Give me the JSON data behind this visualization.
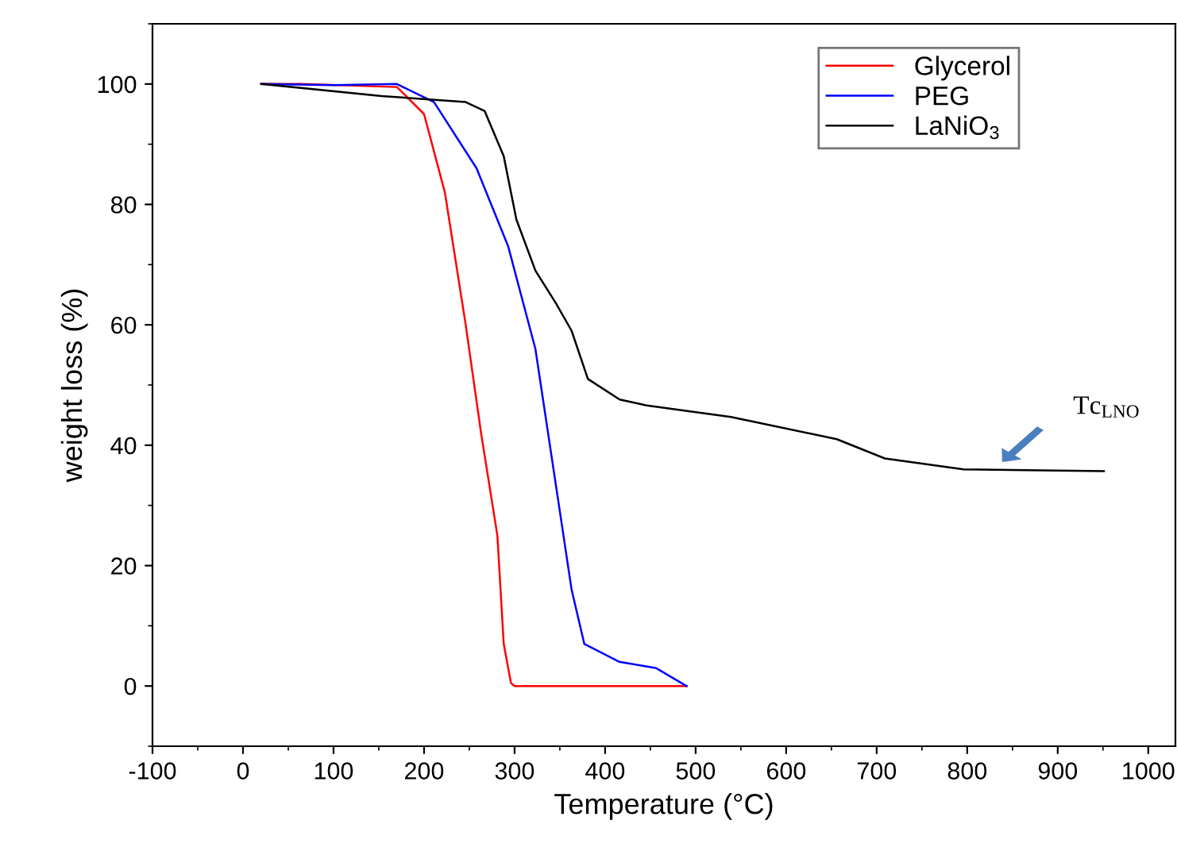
{
  "chart_data": {
    "type": "line",
    "xlabel": "Temperature (°C)",
    "ylabel": "weight loss (%)",
    "xlim": [
      -100,
      1030
    ],
    "ylim": [
      -10,
      110
    ],
    "xticks": [
      -100,
      0,
      100,
      200,
      300,
      400,
      500,
      600,
      700,
      800,
      900,
      1000
    ],
    "yticks": [
      0,
      20,
      40,
      60,
      80,
      100
    ],
    "grid": false,
    "legend": "top right",
    "line_style": "solid",
    "marker": "none",
    "series": [
      {
        "name": "Glycerol",
        "color": "#ff0000",
        "x": [
          20,
          65,
          170,
          200,
          223,
          246,
          263,
          281,
          288,
          296,
          300,
          490
        ],
        "values": [
          100,
          100,
          99.5,
          95,
          82,
          60,
          42,
          25,
          7,
          0.5,
          0,
          0
        ]
      },
      {
        "name": "PEG",
        "color": "#0000ff",
        "x": [
          20,
          100,
          170,
          211,
          258,
          293,
          323,
          346,
          363,
          377,
          416,
          456,
          490
        ],
        "values": [
          100,
          99.8,
          100,
          97,
          86,
          73,
          56,
          33,
          16,
          7,
          4,
          3,
          0
        ]
      },
      {
        "name": "LaNiO$_{3}$",
        "color": "#000000",
        "x": [
          21,
          153,
          246,
          267,
          288,
          302,
          323,
          346,
          363,
          381,
          416,
          446,
          539,
          561,
          656,
          709,
          796,
          951
        ],
        "values": [
          100,
          98,
          97,
          95.5,
          88,
          77.5,
          69,
          63.5,
          59,
          51,
          47.6,
          46.6,
          44.7,
          44,
          41,
          37.8,
          36,
          35.7
        ]
      }
    ],
    "annotations": [
      "Tc$_{LNO}$"
    ]
  }
}
